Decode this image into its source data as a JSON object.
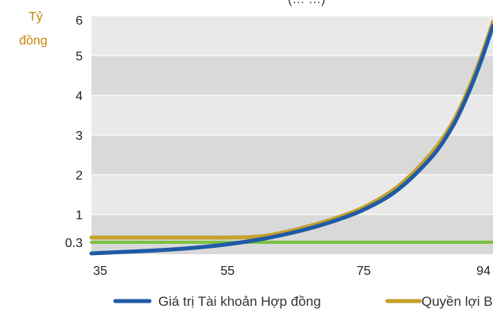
{
  "header_fragment": "(… …)",
  "chart_data": {
    "type": "line",
    "y_unit_label": [
      "Tỷ",
      "đồng"
    ],
    "xlim": [
      35,
      94
    ],
    "ylim": [
      0,
      6
    ],
    "x_ticks": [
      "35",
      "55",
      "75",
      "94"
    ],
    "y_ticks": [
      "0.3",
      "1",
      "2",
      "3",
      "4",
      "5",
      "6"
    ],
    "series": [
      {
        "name": "Giá trị Tài khoản Hợp đồng",
        "color": "#1f5aa6",
        "x": [
          35,
          40,
          45,
          50,
          55,
          60,
          65,
          70,
          75,
          80,
          85,
          88,
          90,
          92,
          94
        ],
        "y": [
          0.02,
          0.06,
          0.1,
          0.16,
          0.25,
          0.38,
          0.56,
          0.8,
          1.12,
          1.62,
          2.45,
          3.2,
          3.9,
          4.75,
          5.75
        ]
      },
      {
        "name": "Quyền lợi Bả",
        "color": "#c5a12a",
        "x": [
          35,
          40,
          45,
          50,
          55,
          60,
          65,
          70,
          75,
          80,
          85,
          88,
          90,
          92,
          94
        ],
        "y": [
          0.42,
          0.42,
          0.42,
          0.42,
          0.42,
          0.45,
          0.62,
          0.86,
          1.18,
          1.7,
          2.55,
          3.3,
          4.0,
          4.85,
          5.85
        ]
      },
      {
        "color": "#7dc142",
        "x": [
          35,
          94
        ],
        "y": [
          0.3,
          0.3
        ]
      }
    ],
    "grid": true
  }
}
